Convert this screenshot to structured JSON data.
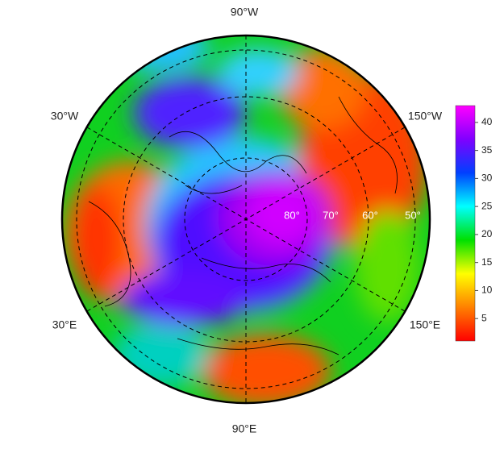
{
  "map": {
    "longitude_labels": [
      "90°W",
      "30°W",
      "150°W",
      "30°E",
      "150°E",
      "90°E"
    ],
    "latitude_labels": [
      "80°",
      "70°",
      "60°",
      "50°"
    ],
    "colorbar": {
      "range": [
        1,
        43
      ],
      "ticks": [
        5,
        10,
        15,
        20,
        25,
        30,
        35,
        40
      ],
      "colors": [
        "#ff0000",
        "#ff8000",
        "#ffff00",
        "#00e000",
        "#00ffff",
        "#0040ff",
        "#8000ff",
        "#ff00ff"
      ]
    }
  }
}
